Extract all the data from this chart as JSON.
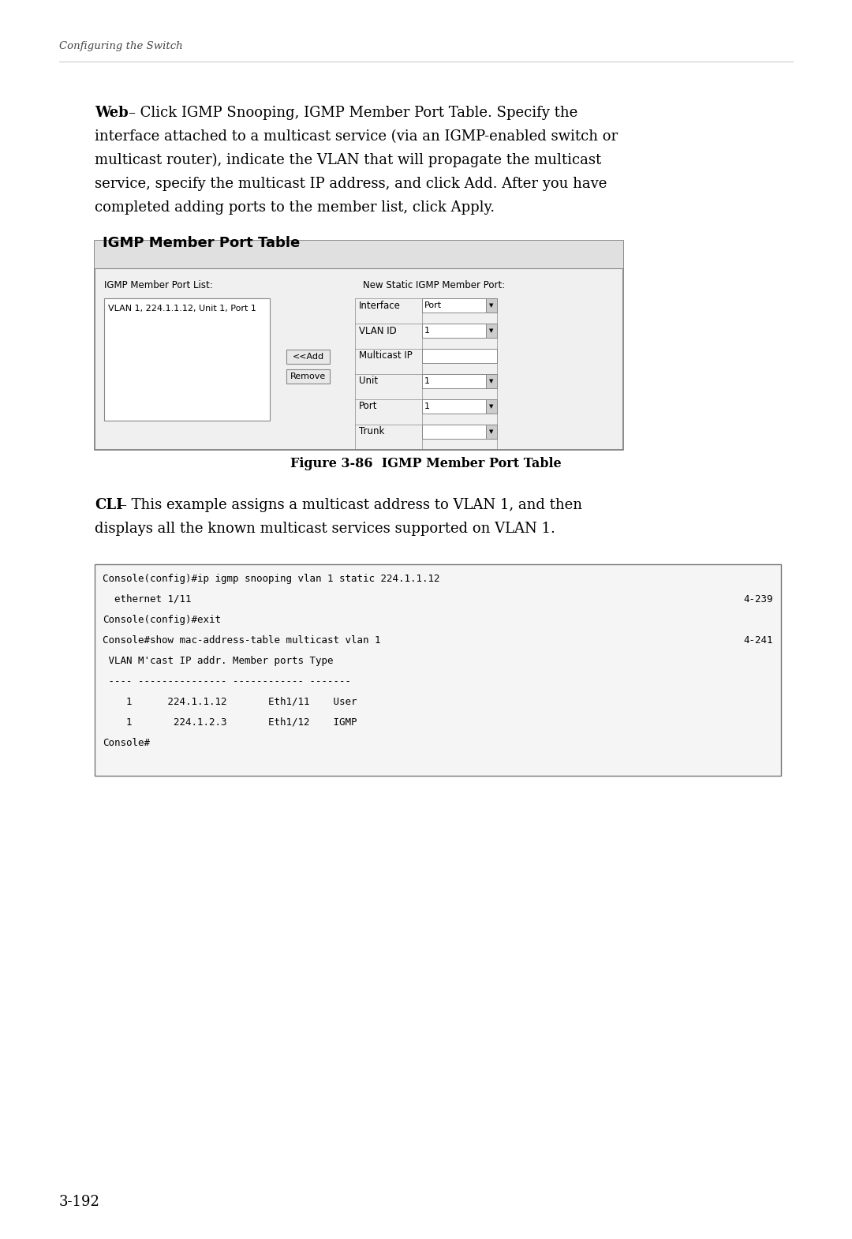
{
  "bg_color": "#ffffff",
  "section_header": "Configuring the Switch",
  "web_bold": "Web",
  "web_lines": [
    "– Click IGMP Snooping, IGMP Member Port Table. Specify the",
    "interface attached to a multicast service (via an IGMP-enabled switch or",
    "multicast router), indicate the VLAN that will propagate the multicast",
    "service, specify the multicast IP address, and click Add. After you have",
    "completed adding ports to the member list, click Apply."
  ],
  "figure_caption": "Figure 3-86  IGMP Member Port Table",
  "cli_bold": "CLI",
  "cli_lines": [
    "– This example assigns a multicast address to VLAN 1, and then",
    "displays all the known multicast services supported on VLAN 1."
  ],
  "igmp_box_title": "IGMP Member Port Table",
  "igmp_member_port_list_label": "IGMP Member Port List:",
  "igmp_new_static_label": "New Static IGMP Member Port:",
  "igmp_list_entry": "VLAN 1, 224.1.1.12, Unit 1, Port 1",
  "btn_add": "<<Add",
  "btn_remove": "Remove",
  "form_fields": [
    "Interface",
    "VLAN ID",
    "Multicast IP",
    "Unit",
    "Port",
    "Trunk"
  ],
  "form_values": [
    "Port",
    "1",
    "",
    "1",
    "1",
    ""
  ],
  "form_has_dropdown": [
    true,
    true,
    false,
    true,
    true,
    true
  ],
  "code_lines": [
    {
      "text": "Console(config)#ip igmp snooping vlan 1 static 224.1.1.12",
      "right": ""
    },
    {
      "text": "  ethernet 1/11",
      "right": "4-239"
    },
    {
      "text": "Console(config)#exit",
      "right": ""
    },
    {
      "text": "Console#show mac-address-table multicast vlan 1",
      "right": "4-241"
    },
    {
      "text": " VLAN M'cast IP addr. Member ports Type",
      "right": ""
    },
    {
      "text": " ---- --------------- ------------ -------",
      "right": ""
    },
    {
      "text": "    1      224.1.1.12       Eth1/11    User",
      "right": ""
    },
    {
      "text": "    1       224.1.2.3       Eth1/12    IGMP",
      "right": ""
    },
    {
      "text": "Console#",
      "right": ""
    }
  ],
  "page_number": "3-192"
}
